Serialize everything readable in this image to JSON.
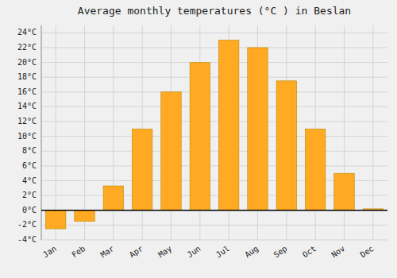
{
  "chart_data": {
    "type": "bar",
    "title": "Average monthly temperatures (°C ) in Beslan",
    "categories": [
      "Jan",
      "Feb",
      "Mar",
      "Apr",
      "May",
      "Jun",
      "Jul",
      "Aug",
      "Sep",
      "Oct",
      "Nov",
      "Dec"
    ],
    "values": [
      -2.5,
      -1.5,
      3.3,
      11.0,
      16.0,
      20.0,
      23.0,
      22.0,
      17.5,
      11.0,
      5.0,
      0.2
    ],
    "color": "#FFAA22",
    "ylim": [
      -4,
      25
    ],
    "yticks": [
      {
        "value": -4,
        "label": "-4°C"
      },
      {
        "value": -2,
        "label": "-2°C"
      },
      {
        "value": 0,
        "label": "0°C"
      },
      {
        "value": 2,
        "label": "2°C"
      },
      {
        "value": 4,
        "label": "4°C"
      },
      {
        "value": 6,
        "label": "6°C"
      },
      {
        "value": 8,
        "label": "8°C"
      },
      {
        "value": 10,
        "label": "10°C"
      },
      {
        "value": 12,
        "label": "12°C"
      },
      {
        "value": 14,
        "label": "14°C"
      },
      {
        "value": 16,
        "label": "16°C"
      },
      {
        "value": 18,
        "label": "18°C"
      },
      {
        "value": 20,
        "label": "20°C"
      },
      {
        "value": 22,
        "label": "22°C"
      },
      {
        "value": 24,
        "label": "24°C"
      }
    ],
    "grid": true
  }
}
